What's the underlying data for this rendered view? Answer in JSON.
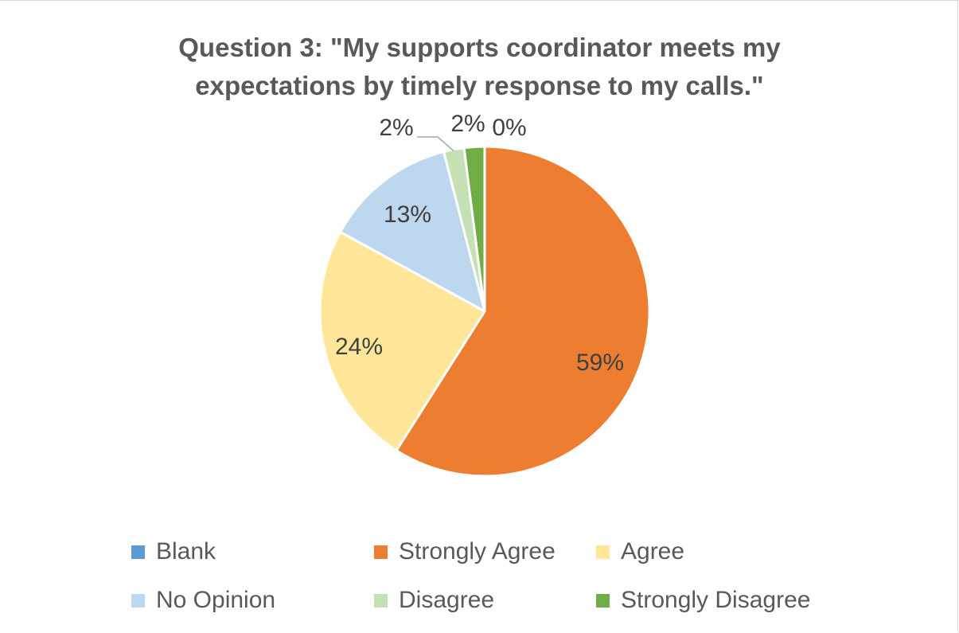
{
  "chart_data": {
    "type": "pie",
    "title_lines": [
      "Question 3: \"My supports coordinator meets my",
      "expectations by timely response to my calls.\""
    ],
    "slices": [
      {
        "name": "Blank",
        "value": 0,
        "color": "#5b9bd5"
      },
      {
        "name": "Strongly Agree",
        "value": 59,
        "color": "#ed7d31"
      },
      {
        "name": "Agree",
        "value": 24,
        "color": "#ffe699"
      },
      {
        "name": "No Opinion",
        "value": 13,
        "color": "#bdd7ee"
      },
      {
        "name": "Disagree",
        "value": 2,
        "color": "#c5e0b4"
      },
      {
        "name": "Strongly Disagree",
        "value": 2,
        "color": "#70ad47"
      }
    ],
    "data_labels": [
      "0%",
      "59%",
      "24%",
      "13%",
      "2%",
      "2%"
    ],
    "legend_position": "bottom"
  }
}
